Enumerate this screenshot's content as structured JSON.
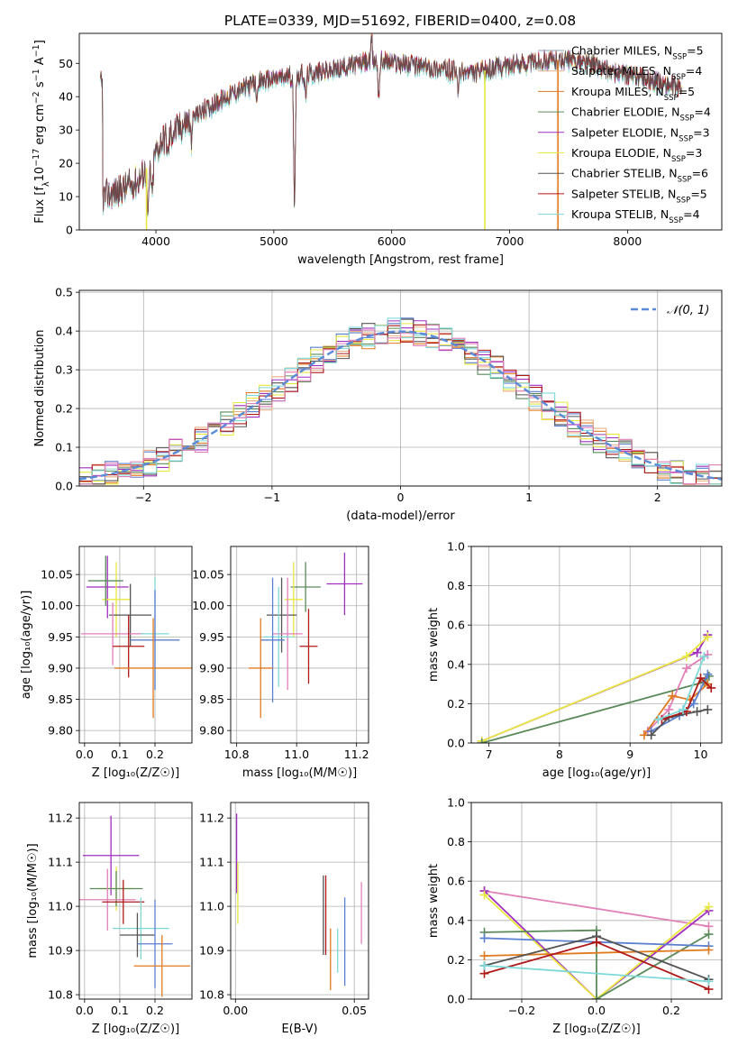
{
  "figure_title": "PLATE=0339, MJD=51692, FIBERID=0400, z=0.08",
  "colors": {
    "Chabrier MILES": "#5b7fd0",
    "Salpeter MILES": "#e07a1f",
    "Kroupa MILES": "#e07a1f",
    "Chabrier ELODIE": "#5a8a5a",
    "Salpeter ELODIE": "#a02fc0",
    "Kroupa ELODIE": "#e8e840",
    "Chabrier STELIB": "#555555",
    "Salpeter STELIB": "#b01818",
    "Kroupa STELIB": "#7fd8d8",
    "gauss": "#5a8ad8",
    "pink": "#e080b8"
  },
  "chart_data": [
    {
      "id": "spectrum",
      "type": "line",
      "title": "PLATE=0339, MJD=51692, FIBERID=0400, z=0.08",
      "xlabel": "wavelength [Angstrom, rest frame]",
      "ylabel_parts": [
        "Flux [f",
        "λ",
        "10",
        "−17",
        " erg cm",
        "−2",
        " s",
        "−1",
        " A",
        "−1",
        "]"
      ],
      "xlim": [
        3350,
        8800
      ],
      "ylim": [
        0,
        59
      ],
      "xticks": [
        4000,
        5000,
        6000,
        7000,
        8000
      ],
      "yticks": [
        0,
        10,
        20,
        30,
        40,
        50
      ],
      "legend_loc": "upper right",
      "legend": [
        {
          "name": "Chabrier MILES, N",
          "sub": "SSP",
          "tail": "=5",
          "color": "#8aa0b8"
        },
        {
          "name": "Salpeter MILES, N",
          "sub": "SSP",
          "tail": "=4",
          "color": "#e8b080"
        },
        {
          "name": "Kroupa MILES, N",
          "sub": "SSP",
          "tail": "=5",
          "color": "#e07a1f"
        },
        {
          "name": "Chabrier ELODIE, N",
          "sub": "SSP",
          "tail": "=4",
          "color": "#5a8a5a"
        },
        {
          "name": "Salpeter ELODIE, N",
          "sub": "SSP",
          "tail": "=3",
          "color": "#a02fc0"
        },
        {
          "name": "Kroupa ELODIE, N",
          "sub": "SSP",
          "tail": "=3",
          "color": "#e8e840"
        },
        {
          "name": "Chabrier STELIB, N",
          "sub": "SSP",
          "tail": "=6",
          "color": "#555555"
        },
        {
          "name": "Salpeter STELIB, N",
          "sub": "SSP",
          "tail": "=5",
          "color": "#b01818"
        },
        {
          "name": "Kroupa STELIB, N",
          "sub": "SSP",
          "tail": "=4",
          "color": "#7fd8d8"
        }
      ],
      "continuum": {
        "x": [
          3550,
          3700,
          3850,
          3950,
          4050,
          4200,
          4350,
          4500,
          4700,
          4900,
          5100,
          5300,
          5500,
          5700,
          5900,
          6100,
          6300,
          6500,
          6700,
          6900,
          7100,
          7300,
          7500,
          7700,
          7900,
          8100,
          8300,
          8450
        ],
        "y": [
          10,
          12,
          15,
          20,
          27,
          31,
          35,
          38,
          42,
          45,
          46,
          47,
          48,
          50,
          51,
          50,
          49,
          48,
          47,
          49,
          50,
          51,
          51,
          50,
          47,
          46,
          44,
          43
        ]
      },
      "absorption_lines": [
        {
          "x": 3933,
          "depth": 16
        },
        {
          "x": 3968,
          "depth": 12
        },
        {
          "x": 4102,
          "depth": 6
        },
        {
          "x": 4300,
          "depth": 8
        },
        {
          "x": 4861,
          "depth": 6
        },
        {
          "x": 5175,
          "depth": 38
        },
        {
          "x": 5270,
          "depth": 7
        },
        {
          "x": 5890,
          "depth": 10
        },
        {
          "x": 6563,
          "depth": 6
        },
        {
          "x": 8500,
          "depth": 5
        },
        {
          "x": 8542,
          "depth": 6
        }
      ],
      "emission_spike": {
        "x": 5830,
        "height": 8
      },
      "dropouts": [
        {
          "x": 3920,
          "color": "#e8e840"
        },
        {
          "x": 6790,
          "color": "#e8e840"
        },
        {
          "x": 7410,
          "color": "#e07a1f"
        }
      ]
    },
    {
      "id": "residual-hist",
      "type": "histogram",
      "xlabel": "(data-model)/error",
      "ylabel": "Normed distribution",
      "xlim": [
        -2.5,
        2.5
      ],
      "ylim": [
        0,
        0.505
      ],
      "xticks": [
        -2,
        -1,
        0,
        1,
        2
      ],
      "yticks": [
        0.0,
        0.1,
        0.2,
        0.3,
        0.4,
        0.5
      ],
      "bin_width": 0.1,
      "legend_loc": "upper right",
      "legend": [
        {
          "name": "𝒩(0, 1)",
          "color": "#5a8ad8",
          "style": "dashed"
        }
      ],
      "gauss": {
        "mu": 0,
        "sigma": 1
      },
      "series": [
        {
          "name": "Chabrier MILES",
          "color": "#5b7fd0",
          "seed": 1
        },
        {
          "name": "Salpeter MILES",
          "color": "#e07a1f",
          "seed": 2
        },
        {
          "name": "Kroupa MILES",
          "color": "#e8b080",
          "seed": 3
        },
        {
          "name": "Chabrier ELODIE",
          "color": "#5a8a5a",
          "seed": 4
        },
        {
          "name": "Salpeter ELODIE",
          "color": "#a02fc0",
          "seed": 5
        },
        {
          "name": "Kroupa ELODIE",
          "color": "#e8e840",
          "seed": 6
        },
        {
          "name": "Chabrier STELIB",
          "color": "#555555",
          "seed": 7
        },
        {
          "name": "Salpeter STELIB",
          "color": "#b01818",
          "seed": 8
        },
        {
          "name": "Kroupa STELIB",
          "color": "#7fd8d8",
          "seed": 9
        },
        {
          "name": "",
          "color": "#e080b8",
          "seed": 10
        }
      ]
    },
    {
      "id": "z-age",
      "type": "errorbar",
      "xlabel": "Z [log₁₀(Z/Z☉)]",
      "ylabel": "age  [log₁₀(age/yr)]",
      "xlim": [
        -0.015,
        0.305
      ],
      "ylim": [
        9.78,
        10.095
      ],
      "xticks": [
        0.0,
        0.1,
        0.2
      ],
      "yticks": [
        9.8,
        9.85,
        9.9,
        9.95,
        10.0,
        10.05
      ],
      "points": [
        {
          "x": 0.065,
          "y": 10.03,
          "xerr": 0.06,
          "yerr": 0.05,
          "color": "#a02fc0"
        },
        {
          "x": 0.09,
          "y": 10.01,
          "xerr": 0.04,
          "yerr": 0.06,
          "color": "#e8e840"
        },
        {
          "x": 0.06,
          "y": 10.04,
          "xerr": 0.05,
          "yerr": 0.04,
          "color": "#5a8a5a"
        },
        {
          "x": 0.13,
          "y": 9.985,
          "xerr": 0.06,
          "yerr": 0.05,
          "color": "#555555"
        },
        {
          "x": 0.08,
          "y": 9.955,
          "xerr": 0.09,
          "yerr": 0.05,
          "color": "#e080b8"
        },
        {
          "x": 0.2,
          "y": 9.955,
          "xerr": 0.04,
          "yerr": 0.09,
          "color": "#7fd8d8"
        },
        {
          "x": 0.2,
          "y": 9.945,
          "xerr": 0.07,
          "yerr": 0.08,
          "color": "#5b7fd0"
        },
        {
          "x": 0.125,
          "y": 9.935,
          "xerr": 0.045,
          "yerr": 0.05,
          "color": "#b01818"
        },
        {
          "x": 0.195,
          "y": 9.9,
          "xerr": 0.11,
          "yerr": 0.08,
          "color": "#e07a1f"
        }
      ]
    },
    {
      "id": "mass-age",
      "type": "errorbar",
      "xlabel": "mass [log₁₀(M/M☉)]",
      "ylabel": "",
      "xlim": [
        10.78,
        11.24
      ],
      "ylim": [
        9.78,
        10.095
      ],
      "xticks": [
        10.8,
        11.0,
        11.2
      ],
      "yticks": [
        9.8,
        9.85,
        9.9,
        9.95,
        10.0,
        10.05
      ],
      "points": [
        {
          "x": 11.16,
          "y": 10.035,
          "xerr": 0.06,
          "yerr": 0.05,
          "color": "#a02fc0"
        },
        {
          "x": 11.03,
          "y": 10.03,
          "xerr": 0.05,
          "yerr": 0.04,
          "color": "#5a8a5a"
        },
        {
          "x": 10.99,
          "y": 10.01,
          "xerr": 0.03,
          "yerr": 0.06,
          "color": "#e8e840"
        },
        {
          "x": 10.95,
          "y": 9.985,
          "xerr": 0.05,
          "yerr": 0.06,
          "color": "#555555"
        },
        {
          "x": 10.97,
          "y": 9.955,
          "xerr": 0.05,
          "yerr": 0.09,
          "color": "#e080b8"
        },
        {
          "x": 10.94,
          "y": 9.95,
          "xerr": 0.05,
          "yerr": 0.08,
          "color": "#7fd8d8"
        },
        {
          "x": 10.92,
          "y": 9.945,
          "xerr": 0.04,
          "yerr": 0.1,
          "color": "#5b7fd0"
        },
        {
          "x": 11.04,
          "y": 9.935,
          "xerr": 0.03,
          "yerr": 0.06,
          "color": "#b01818"
        },
        {
          "x": 10.88,
          "y": 9.9,
          "xerr": 0.04,
          "yerr": 0.08,
          "color": "#e07a1f"
        }
      ]
    },
    {
      "id": "age-weight",
      "type": "line",
      "xlabel": "age  [log₁₀(age/yr)]",
      "ylabel": "mass weight",
      "xlim": [
        6.75,
        10.3
      ],
      "ylim": [
        0,
        1.0
      ],
      "xticks": [
        7,
        8,
        9,
        10
      ],
      "yticks": [
        0.0,
        0.2,
        0.4,
        0.6,
        0.8,
        1.0
      ],
      "series": [
        {
          "color": "#a02fc0",
          "x": [
            6.9,
            9.95,
            10.1
          ],
          "y": [
            0.01,
            0.46,
            0.55
          ]
        },
        {
          "color": "#e8e840",
          "x": [
            6.9,
            9.8,
            10.1
          ],
          "y": [
            0.01,
            0.44,
            0.54
          ]
        },
        {
          "color": "#5a8a5a",
          "x": [
            6.9,
            10.05,
            10.12
          ],
          "y": [
            0.0,
            0.31,
            0.34
          ]
        },
        {
          "color": "#e080b8",
          "x": [
            9.25,
            9.55,
            9.8,
            10.1
          ],
          "y": [
            0.06,
            0.17,
            0.38,
            0.45
          ]
        },
        {
          "color": "#e07a1f",
          "x": [
            9.2,
            9.6,
            9.85,
            10.1
          ],
          "y": [
            0.04,
            0.24,
            0.22,
            0.3
          ]
        },
        {
          "color": "#5b7fd0",
          "x": [
            9.3,
            9.7,
            9.9,
            10.1
          ],
          "y": [
            0.06,
            0.14,
            0.2,
            0.35
          ]
        },
        {
          "color": "#555555",
          "x": [
            9.3,
            9.55,
            9.95,
            10.1
          ],
          "y": [
            0.04,
            0.13,
            0.16,
            0.17
          ]
        },
        {
          "color": "#b01818",
          "x": [
            9.45,
            9.8,
            10.0,
            10.15
          ],
          "y": [
            0.12,
            0.16,
            0.33,
            0.28
          ]
        },
        {
          "color": "#7fd8d8",
          "x": [
            9.4,
            9.75,
            10.05
          ],
          "y": [
            0.12,
            0.17,
            0.44
          ]
        }
      ]
    },
    {
      "id": "z-mass",
      "type": "errorbar",
      "xlabel": "Z [log₁₀(Z/Z☉)]",
      "ylabel": "mass [log₁₀(M/M☉)]",
      "xlim": [
        -0.015,
        0.305
      ],
      "ylim": [
        10.79,
        11.235
      ],
      "xticks": [
        0.0,
        0.1,
        0.2
      ],
      "yticks": [
        10.8,
        10.9,
        11.0,
        11.1,
        11.2
      ],
      "points": [
        {
          "x": 0.075,
          "y": 11.115,
          "xerr": 0.08,
          "yerr": 0.09,
          "color": "#a02fc0"
        },
        {
          "x": 0.09,
          "y": 11.04,
          "xerr": 0.05,
          "yerr": 0.05,
          "color": "#e8e840"
        },
        {
          "x": 0.09,
          "y": 11.04,
          "xerr": 0.075,
          "yerr": 0.04,
          "color": "#5a8a5a"
        },
        {
          "x": 0.065,
          "y": 11.015,
          "xerr": 0.08,
          "yerr": 0.07,
          "color": "#e080b8"
        },
        {
          "x": 0.11,
          "y": 11.01,
          "xerr": 0.06,
          "yerr": 0.05,
          "color": "#b01818"
        },
        {
          "x": 0.16,
          "y": 10.95,
          "xerr": 0.08,
          "yerr": 0.07,
          "color": "#7fd8d8"
        },
        {
          "x": 0.15,
          "y": 10.935,
          "xerr": 0.05,
          "yerr": 0.05,
          "color": "#555555"
        },
        {
          "x": 0.2,
          "y": 10.915,
          "xerr": 0.05,
          "yerr": 0.1,
          "color": "#5b7fd0"
        },
        {
          "x": 0.22,
          "y": 10.865,
          "xerr": 0.08,
          "yerr": 0.07,
          "color": "#e07a1f"
        }
      ]
    },
    {
      "id": "ebv-mass",
      "type": "errorbar",
      "xlabel": "E(B-V)",
      "ylabel": "",
      "xlim": [
        -0.002,
        0.056
      ],
      "ylim": [
        10.79,
        11.235
      ],
      "xticks": [
        0.0,
        0.05
      ],
      "yticks": [
        10.8,
        10.9,
        11.0,
        11.1,
        11.2
      ],
      "points": [
        {
          "x": 0.0005,
          "y": 11.12,
          "xerr": 0,
          "yerr": 0.09,
          "color": "#a02fc0"
        },
        {
          "x": 0.001,
          "y": 11.03,
          "xerr": 0,
          "yerr": 0.07,
          "color": "#e8e840"
        },
        {
          "x": 0.037,
          "y": 10.98,
          "xerr": 0,
          "yerr": 0.09,
          "color": "#555555"
        },
        {
          "x": 0.038,
          "y": 10.98,
          "xerr": 0,
          "yerr": 0.09,
          "color": "#b01818"
        },
        {
          "x": 0.04,
          "y": 10.88,
          "xerr": 0,
          "yerr": 0.07,
          "color": "#e07a1f"
        },
        {
          "x": 0.043,
          "y": 10.9,
          "xerr": 0,
          "yerr": 0.05,
          "color": "#7fd8d8"
        },
        {
          "x": 0.046,
          "y": 10.92,
          "xerr": 0,
          "yerr": 0.1,
          "color": "#5b7fd0"
        },
        {
          "x": 0.053,
          "y": 10.985,
          "xerr": 0,
          "yerr": 0.07,
          "color": "#e080b8"
        }
      ]
    },
    {
      "id": "z-weight",
      "type": "line",
      "xlabel": "Z [log₁₀(Z/Z☉)]",
      "ylabel": "mass weight",
      "xlim": [
        -0.335,
        0.335
      ],
      "ylim": [
        0,
        1.0
      ],
      "xticks": [
        -0.2,
        0.0,
        0.2
      ],
      "yticks": [
        0.0,
        0.2,
        0.4,
        0.6,
        0.8,
        1.0
      ],
      "series": [
        {
          "color": "#e080b8",
          "x": [
            -0.3,
            0.3
          ],
          "y": [
            0.55,
            0.37
          ]
        },
        {
          "color": "#a02fc0",
          "x": [
            -0.3,
            0.0,
            0.3
          ],
          "y": [
            0.55,
            0.0,
            0.45
          ]
        },
        {
          "color": "#e8e840",
          "x": [
            -0.3,
            0.0,
            0.3
          ],
          "y": [
            0.53,
            0.0,
            0.47
          ]
        },
        {
          "color": "#5a8a5a",
          "x": [
            -0.3,
            0.0,
            0.0,
            0.3
          ],
          "y": [
            0.34,
            0.35,
            0.0,
            0.33
          ]
        },
        {
          "color": "#5b7fd0",
          "x": [
            -0.3,
            0.3
          ],
          "y": [
            0.31,
            0.27
          ]
        },
        {
          "color": "#e07a1f",
          "x": [
            -0.3,
            0.3
          ],
          "y": [
            0.22,
            0.25
          ]
        },
        {
          "color": "#555555",
          "x": [
            -0.3,
            0.0,
            0.3
          ],
          "y": [
            0.17,
            0.32,
            0.1
          ]
        },
        {
          "color": "#b01818",
          "x": [
            -0.3,
            0.0,
            0.3
          ],
          "y": [
            0.13,
            0.29,
            0.05
          ]
        },
        {
          "color": "#7fd8d8",
          "x": [
            -0.3,
            0.3
          ],
          "y": [
            0.17,
            0.09
          ]
        }
      ]
    }
  ]
}
